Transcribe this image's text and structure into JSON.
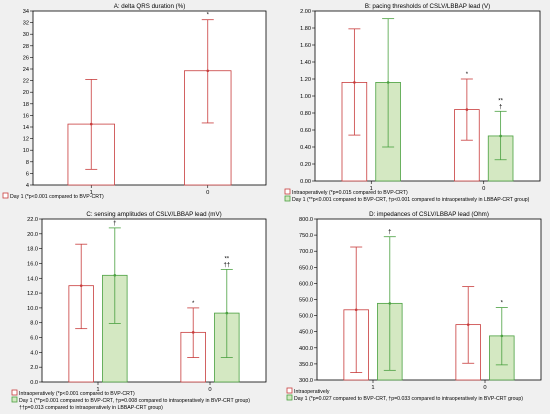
{
  "colors": {
    "background": "#f0f0f0",
    "plot_background": "#ffffff",
    "red_series": "#c83c3c",
    "green_series": "#4aa040",
    "green_fill": "#d4e8c2",
    "axis": "#000000"
  },
  "chart_data": [
    {
      "type": "bar",
      "title": "A: delta QRS duration (%)",
      "categories": [
        "1",
        "0"
      ],
      "ylim": [
        4,
        34
      ],
      "yticks": [
        4,
        6,
        8,
        10,
        12,
        14,
        16,
        18,
        20,
        22,
        24,
        26,
        28,
        30,
        32,
        34
      ],
      "ytick_labels": [
        "4",
        "6",
        "8",
        "10",
        "12",
        "14",
        "16",
        "18",
        "20",
        "22",
        "24",
        "26",
        "28",
        "30",
        "32",
        "34"
      ],
      "series": [
        {
          "name": "Day 1 (*p<0.001 compared to BVP-CRT)",
          "color": "red",
          "values": [
            14.5,
            23.7
          ],
          "lower": [
            6.7,
            14.7
          ],
          "upper": [
            22.2,
            32.5
          ],
          "annotations": [
            "",
            "*"
          ]
        }
      ],
      "legend": [
        {
          "label": "Day 1 (*p<0.001 compared to BVP-CRT)",
          "color": "red"
        }
      ],
      "notes": []
    },
    {
      "type": "bar",
      "title": "B: pacing thresholds of CSLV/LBBAP lead (V)",
      "categories": [
        "1",
        "0"
      ],
      "ylim": [
        0,
        2
      ],
      "yticks": [
        0,
        0.2,
        0.4,
        0.6,
        0.8,
        1.0,
        1.2,
        1.4,
        1.6,
        1.8,
        2.0
      ],
      "ytick_labels": [
        "0.00",
        "0.20",
        "0.40",
        "0.60",
        "0.80",
        "1.00",
        "1.20",
        "1.40",
        "1.60",
        "1.80",
        "2.00"
      ],
      "series": [
        {
          "name": "Intraoperatively (*p=0.015 compared to BVP-CRT)",
          "color": "red",
          "values": [
            1.16,
            0.84
          ],
          "lower": [
            0.54,
            0.48
          ],
          "upper": [
            1.79,
            1.2
          ],
          "annotations": [
            "",
            "*"
          ]
        },
        {
          "name": "Day 1 (**p<0.001 compared to BVP-CRT, †p<0.001 compared to intraoperatively in LBBAP-CRT group)",
          "color": "green",
          "values": [
            1.16,
            0.53
          ],
          "lower": [
            0.4,
            0.25
          ],
          "upper": [
            1.91,
            0.82
          ],
          "annotations": [
            "",
            "**\n†"
          ]
        }
      ],
      "legend": [
        {
          "label": "Intraoperatively (*p=0.015 compared to BVP-CRT)",
          "color": "red"
        },
        {
          "label": "Day 1 (**p<0.001 compared to BVP-CRT, †p<0.001 compared to intraoperatively in LBBAP-CRT group)",
          "color": "green"
        }
      ],
      "notes": []
    },
    {
      "type": "bar",
      "title": "C: sensing amplitudes of CSLV/LBBAP lead (mV)",
      "categories": [
        "1",
        "0"
      ],
      "ylim": [
        0,
        22
      ],
      "yticks": [
        0,
        2,
        4,
        6,
        8,
        10,
        12,
        14,
        16,
        18,
        20,
        22
      ],
      "ytick_labels": [
        "0.0",
        "2.0",
        "4.0",
        "6.0",
        "8.0",
        "10.0",
        "12.0",
        "14.0",
        "16.0",
        "18.0",
        "20.0",
        "22.0"
      ],
      "series": [
        {
          "name": "Intraoperatively (*p<0.001 compared to BVP-CRT)",
          "color": "red",
          "values": [
            13.0,
            6.7
          ],
          "lower": [
            7.2,
            3.3
          ],
          "upper": [
            18.6,
            10.0
          ],
          "annotations": [
            "",
            "*"
          ]
        },
        {
          "name": "Day 1 (**p<0.001 compared to BVP-CRT, †p=0.008 compared to intraoperatively in BVP-CRT group)",
          "color": "green",
          "values": [
            14.4,
            9.3
          ],
          "lower": [
            7.9,
            3.3
          ],
          "upper": [
            20.8,
            15.2
          ],
          "annotations": [
            "†",
            "**\n††"
          ]
        }
      ],
      "legend": [
        {
          "label": "Intraoperatively (*p<0.001 compared to BVP-CRT)",
          "color": "red"
        },
        {
          "label": "Day 1 (**p<0.001 compared to BVP-CRT, †p=0.008 compared to intraoperatively in BVP-CRT group)",
          "color": "green"
        }
      ],
      "notes": [
        "††p=0.013 compared to intraoperatively in LBBAP-CRT group)"
      ]
    },
    {
      "type": "bar",
      "title": "D: impedances of CSLV/LBBAP lead (Ohm)",
      "categories": [
        "1",
        "0"
      ],
      "ylim": [
        300,
        800
      ],
      "yticks": [
        300,
        350,
        400,
        450,
        500,
        550,
        600,
        650,
        700,
        750,
        800
      ],
      "ytick_labels": [
        "300.0",
        "350.0",
        "400.0",
        "450.0",
        "500.0",
        "550.0",
        "600.0",
        "650.0",
        "700.0",
        "750.0",
        "800.0"
      ],
      "series": [
        {
          "name": "Intraoperatively",
          "color": "red",
          "values": [
            518,
            472
          ],
          "lower": [
            323,
            352
          ],
          "upper": [
            713,
            590
          ],
          "annotations": [
            "",
            ""
          ]
        },
        {
          "name": "Day 1 (*p=0.027 compared to BVP-CRT, †p=0.033 compared to intraoperatively in BVP-CRT group)",
          "color": "green",
          "values": [
            538,
            437
          ],
          "lower": [
            330,
            347
          ],
          "upper": [
            745,
            525
          ],
          "annotations": [
            "†",
            "*"
          ]
        }
      ],
      "legend": [
        {
          "label": "Intraoperatively",
          "color": "red"
        },
        {
          "label": "Day 1 (*p=0.027 compared to BVP-CRT, †p=0.033 compared to intraoperatively in BVP-CRT group)",
          "color": "green"
        }
      ],
      "notes": []
    }
  ]
}
